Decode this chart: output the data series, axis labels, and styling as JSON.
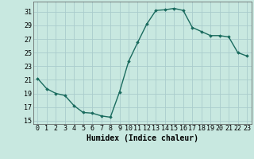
{
  "x": [
    0,
    1,
    2,
    3,
    4,
    5,
    6,
    7,
    8,
    9,
    10,
    11,
    12,
    13,
    14,
    15,
    16,
    17,
    18,
    19,
    20,
    21,
    22,
    23
  ],
  "y": [
    21.2,
    19.7,
    19.0,
    18.7,
    17.2,
    16.2,
    16.1,
    15.7,
    15.5,
    19.2,
    23.7,
    26.5,
    29.2,
    31.2,
    31.3,
    31.5,
    31.2,
    28.7,
    28.1,
    27.5,
    27.5,
    27.3,
    25.0,
    24.5
  ],
  "line_color": "#1a6b5e",
  "marker": "D",
  "marker_size": 1.8,
  "bg_color": "#c8e8e0",
  "grid_color": "#aacccc",
  "xlabel": "Humidex (Indice chaleur)",
  "yticks": [
    15,
    17,
    19,
    21,
    23,
    25,
    27,
    29,
    31
  ],
  "xticks": [
    0,
    1,
    2,
    3,
    4,
    5,
    6,
    7,
    8,
    9,
    10,
    11,
    12,
    13,
    14,
    15,
    16,
    17,
    18,
    19,
    20,
    21,
    22,
    23
  ],
  "ylim": [
    14.5,
    32.5
  ],
  "xlim": [
    -0.5,
    23.5
  ],
  "xlabel_fontsize": 7,
  "tick_fontsize": 6,
  "linewidth": 1.0
}
